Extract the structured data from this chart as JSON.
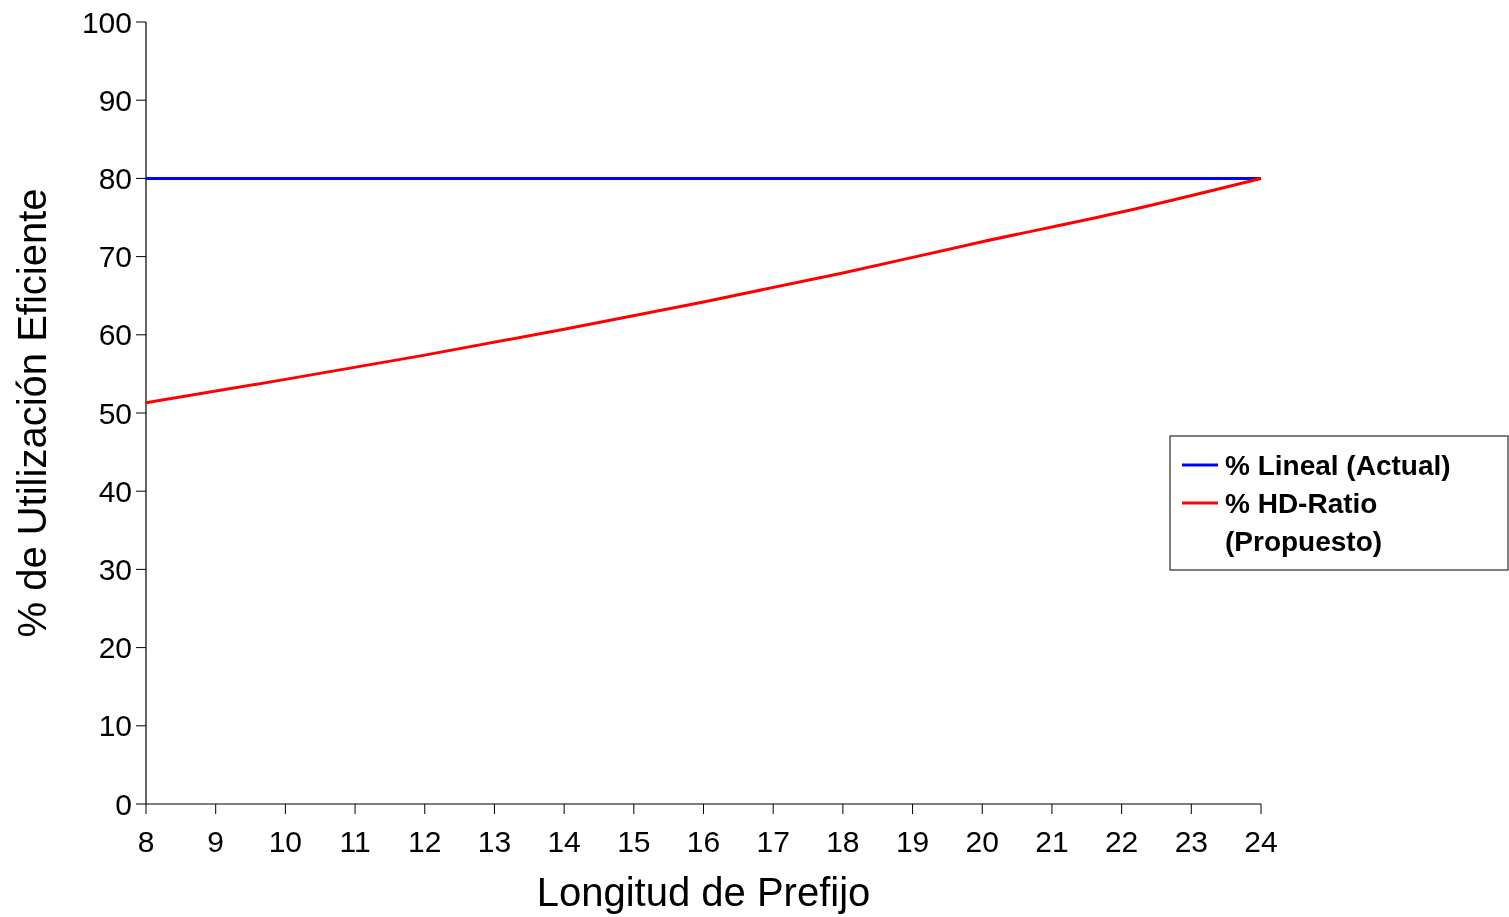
{
  "chart_data": {
    "type": "line",
    "xlabel": "Longitud de Prefijo",
    "ylabel": "% de Utilización Eficiente",
    "x": [
      8,
      10,
      12,
      14,
      16,
      18,
      20,
      22,
      24
    ],
    "xlim": [
      8,
      24
    ],
    "xticks": [
      8,
      9,
      10,
      11,
      12,
      13,
      14,
      15,
      16,
      17,
      18,
      19,
      20,
      21,
      22,
      23,
      24
    ],
    "ylim": [
      0,
      100
    ],
    "yticks": [
      0,
      10,
      20,
      30,
      40,
      50,
      60,
      70,
      80,
      90,
      100
    ],
    "series": [
      {
        "name": "% Lineal (Actual)",
        "color": "#0000ff",
        "values": [
          80,
          80,
          80,
          80,
          80,
          80,
          80,
          80,
          80
        ]
      },
      {
        "name": "% HD-Ratio (Propuesto)",
        "color": "#ff0000",
        "values": [
          51.3,
          54.3,
          57.4,
          60.7,
          64.2,
          67.9,
          71.9,
          75.7,
          80
        ]
      }
    ],
    "legend": "right",
    "grid": false,
    "marker": "none",
    "line_style": "solid"
  }
}
